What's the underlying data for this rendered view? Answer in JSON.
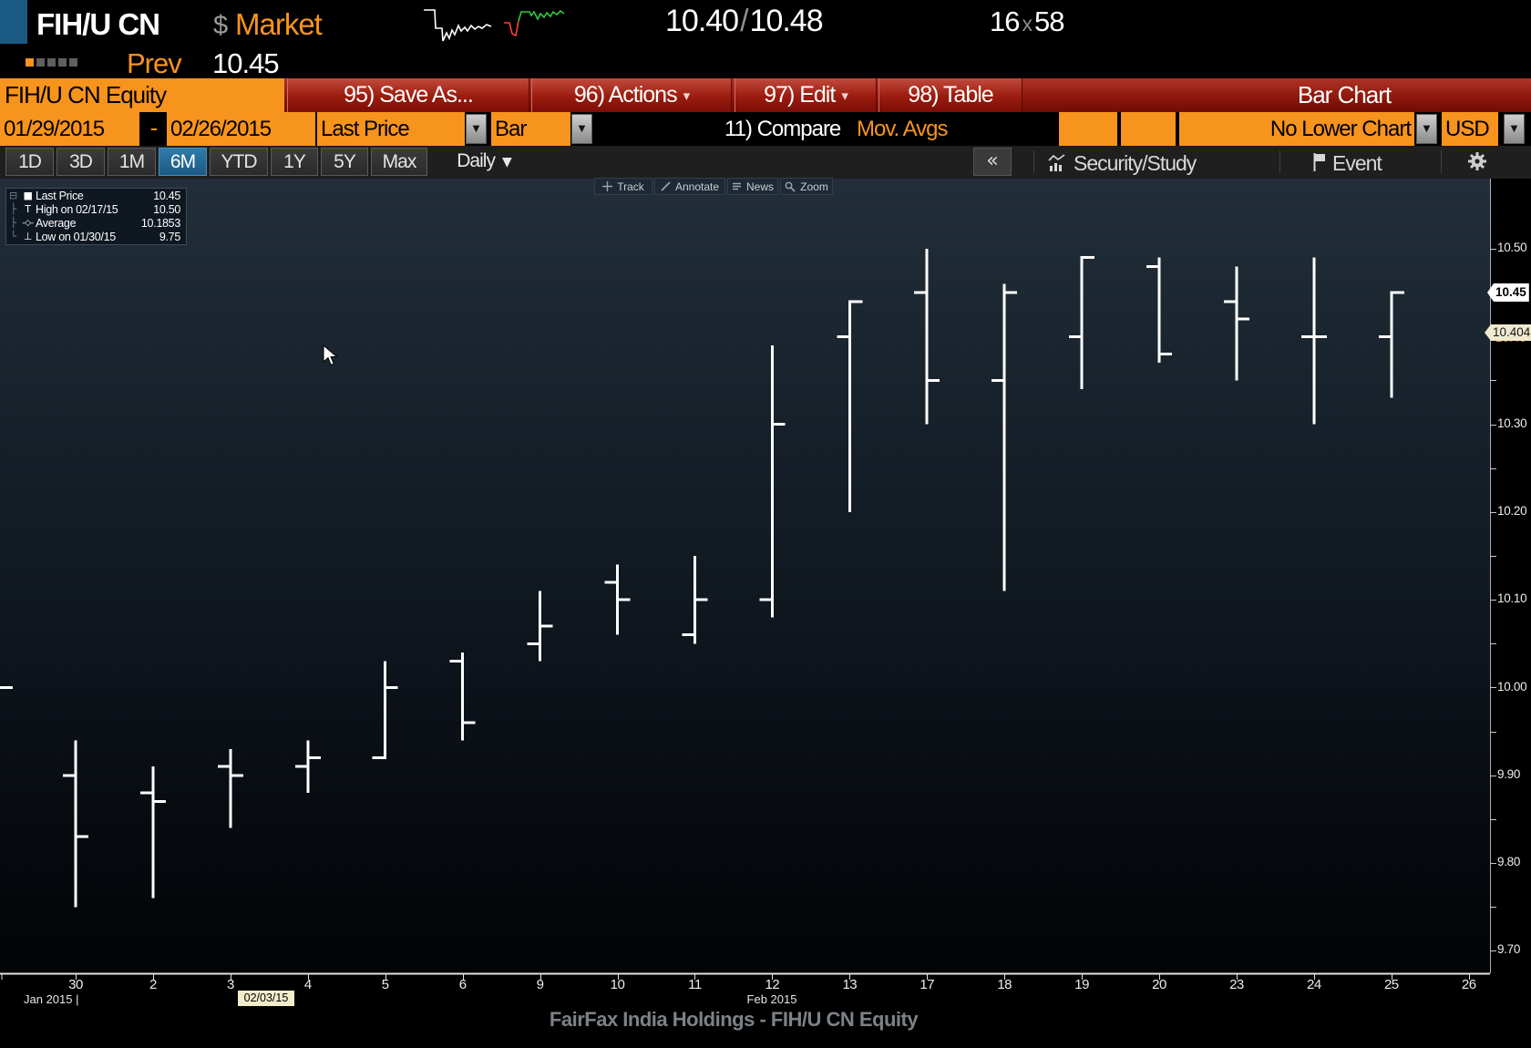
{
  "quote_header": {
    "ticker": "FIH/U CN",
    "currency_symbol": "$",
    "market_label": "Market",
    "bid": "10.40",
    "bid_ask_separator": "/",
    "ask": "10.48",
    "bid_size": "16",
    "size_separator": "x",
    "ask_size": "58",
    "prev_label": "Prev",
    "prev_value": "10.45"
  },
  "toolbar": {
    "security_title": "FIH/U CN Equity",
    "buttons": [
      {
        "label": "95) Save As...",
        "dropdown": false
      },
      {
        "label": "96) Actions",
        "dropdown": true
      },
      {
        "label": "97) Edit",
        "dropdown": true
      },
      {
        "label": "98) Table",
        "dropdown": false
      }
    ],
    "chart_type_label": "Bar Chart"
  },
  "controls": {
    "date_from": "01/29/2015",
    "date_separator": "-",
    "date_to": "02/26/2015",
    "price_field": "Last Price",
    "chart_style": "Bar",
    "compare_label": "11) Compare",
    "mov_avgs_label": "Mov. Avgs",
    "lower_chart": "No Lower Chart",
    "currency": "USD"
  },
  "period_bar": {
    "tabs": [
      "1D",
      "3D",
      "1M",
      "6M",
      "YTD",
      "1Y",
      "5Y",
      "Max"
    ],
    "selected_tab": "6M",
    "frequency": "Daily",
    "collapse_label": "«",
    "security_study_label": "Security/Study",
    "event_label": "Event"
  },
  "chart_toolbar": {
    "buttons": [
      "Track",
      "Annotate",
      "News",
      "Zoom"
    ]
  },
  "legend": {
    "rows": [
      {
        "tree": "⊟",
        "glyph": "■",
        "label": "Last Price",
        "value": "10.45"
      },
      {
        "tree": "├",
        "glyph": "T",
        "label": "High on 02/17/15",
        "value": "10.50"
      },
      {
        "tree": "├",
        "glyph": "-◇-",
        "label": "Average",
        "value": "10.1853"
      },
      {
        "tree": "└",
        "glyph": "⊥",
        "label": "Low on 01/30/15",
        "value": "9.75"
      }
    ]
  },
  "icons": {
    "dropdown_arrow": "▼",
    "caret_down": "▾"
  },
  "chart_data": {
    "type": "ohlc-bar",
    "title": "FairFax India Holdings - FIH/U CN Equity",
    "price_source": "Last Price",
    "ylim": [
      9.67,
      10.58
    ],
    "y_tick_labels": [
      "10.50",
      "10.30",
      "10.20",
      "10.10",
      "10.00",
      "9.90",
      "9.80",
      "9.70"
    ],
    "y_tick_hidden_label": "10.40",
    "tags": [
      {
        "type": "last_price",
        "value": "10.45"
      },
      {
        "type": "moving_average",
        "value": "10.404"
      }
    ],
    "x_labels": [
      "30",
      "2",
      "3",
      "4",
      "5",
      "6",
      "9",
      "10",
      "11",
      "12",
      "13",
      "17",
      "18",
      "19",
      "20",
      "23",
      "24",
      "25",
      "26"
    ],
    "month_labels": [
      {
        "text": "Jan 2015 |"
      },
      {
        "text": "Feb 2015"
      }
    ],
    "highlighted_date": "02/03/15",
    "prev_session_close_tick": 10.0,
    "bars": [
      {
        "date": "30",
        "open": 9.9,
        "high": 9.94,
        "low": 9.75,
        "close": 9.83
      },
      {
        "date": "2",
        "open": 9.88,
        "high": 9.91,
        "low": 9.76,
        "close": 9.87
      },
      {
        "date": "3",
        "open": 9.91,
        "high": 9.93,
        "low": 9.84,
        "close": 9.9
      },
      {
        "date": "4",
        "open": 9.91,
        "high": 9.94,
        "low": 9.88,
        "close": 9.92
      },
      {
        "date": "5",
        "open": 9.92,
        "high": 10.03,
        "low": 9.92,
        "close": 10.0
      },
      {
        "date": "6",
        "open": 10.03,
        "high": 10.04,
        "low": 9.94,
        "close": 9.96
      },
      {
        "date": "9",
        "open": 10.05,
        "high": 10.11,
        "low": 10.03,
        "close": 10.07
      },
      {
        "date": "10",
        "open": 10.12,
        "high": 10.14,
        "low": 10.06,
        "close": 10.1
      },
      {
        "date": "11",
        "open": 10.06,
        "high": 10.15,
        "low": 10.05,
        "close": 10.1
      },
      {
        "date": "12",
        "open": 10.1,
        "high": 10.39,
        "low": 10.08,
        "close": 10.3
      },
      {
        "date": "13",
        "open": 10.4,
        "high": 10.44,
        "low": 10.2,
        "close": 10.44
      },
      {
        "date": "17",
        "open": 10.45,
        "high": 10.5,
        "low": 10.3,
        "close": 10.35
      },
      {
        "date": "18",
        "open": 10.35,
        "high": 10.46,
        "low": 10.11,
        "close": 10.45
      },
      {
        "date": "19",
        "open": 10.4,
        "high": 10.49,
        "low": 10.34,
        "close": 10.49
      },
      {
        "date": "20",
        "open": 10.48,
        "high": 10.49,
        "low": 10.37,
        "close": 10.38
      },
      {
        "date": "23",
        "open": 10.44,
        "high": 10.48,
        "low": 10.35,
        "close": 10.42
      },
      {
        "date": "24",
        "open": 10.4,
        "high": 10.49,
        "low": 10.3,
        "close": 10.4
      },
      {
        "date": "25",
        "open": 10.4,
        "high": 10.45,
        "low": 10.33,
        "close": 10.45
      }
    ],
    "stats": {
      "last_price": "10.45",
      "high_date": "02/17/15",
      "high": "10.50",
      "average": "10.1853",
      "low_date": "01/30/15",
      "low": "9.75"
    }
  },
  "footer_title": "FairFax India Holdings - FIH/U CN Equity",
  "colors": {
    "amber": "#f7941d",
    "button_red": "#9c1d10",
    "tab_selected_blue": "#2878ab",
    "bar_color": "#ffffff",
    "tag_last_bg": "#ffffff",
    "tag_avg_bg": "#efe9cf",
    "chart_bg_top": "#222e39",
    "chart_bg_bottom": "#020305",
    "spark_up": "#2ecc40",
    "spark_down": "#ff4136"
  }
}
